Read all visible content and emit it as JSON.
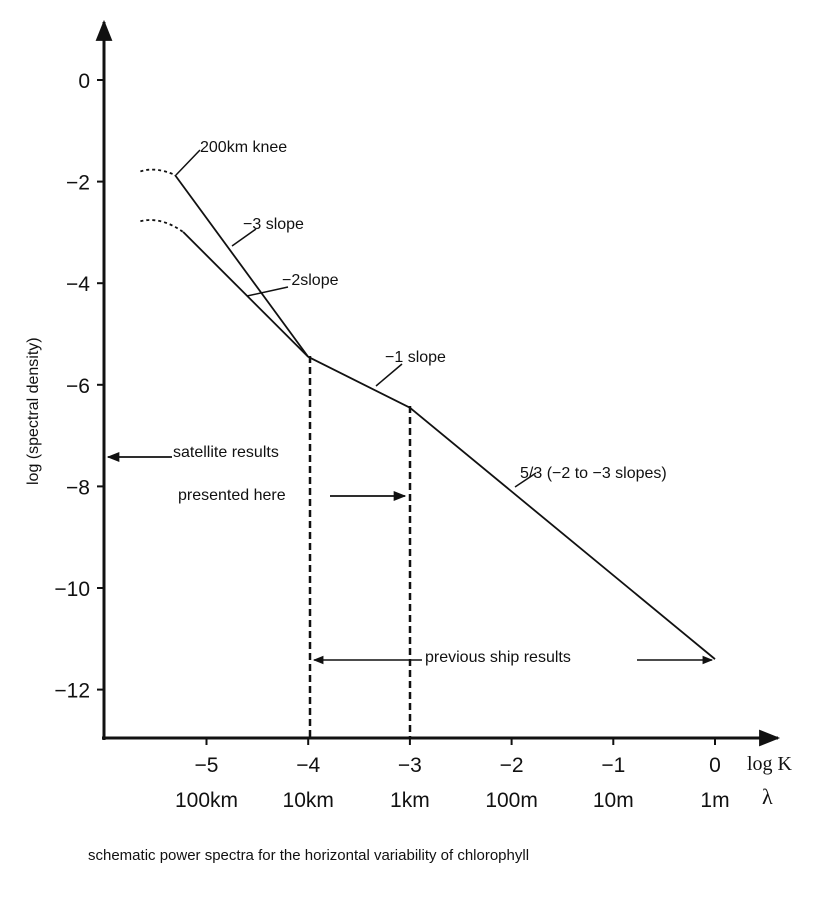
{
  "chart_data": {
    "type": "line",
    "title": "schematic power spectra for the horizontal variability of chlorophyll",
    "xlabel": "log K",
    "xlabel2": "λ",
    "ylabel": "log (spectral density)",
    "xlim": [
      -5.9,
      0.6
    ],
    "ylim": [
      -13,
      1
    ],
    "x_ticks": [
      -5,
      -4,
      -3,
      -2,
      -1,
      0
    ],
    "x_tick_labels": [
      "−5",
      "−4",
      "−3",
      "−2",
      "−1",
      "0"
    ],
    "wavelength_labels": [
      "100km",
      "10km",
      "1km",
      "100m",
      "10m",
      "1m"
    ],
    "y_ticks": [
      0,
      -2,
      -4,
      -6,
      -8,
      -10,
      -12
    ],
    "y_tick_labels": [
      "0",
      "−2",
      "−4",
      "−6",
      "−8",
      "−10",
      "−12"
    ],
    "grid": false,
    "series": [
      {
        "name": "-3 slope",
        "style": "solid",
        "x": [
          -5.31,
          -4.0
        ],
        "y": [
          -1.87,
          -5.45
        ]
      },
      {
        "name": "-2 slope",
        "style": "solid",
        "x": [
          -5.23,
          -4.0
        ],
        "y": [
          -2.99,
          -5.45
        ]
      },
      {
        "name": "-1 slope",
        "style": "solid",
        "x": [
          -4.0,
          -3.0
        ],
        "y": [
          -5.45,
          -6.45
        ]
      },
      {
        "name": "5/3 (-2 to -3 slopes)",
        "style": "solid",
        "x": [
          -3.0,
          0.0
        ],
        "y": [
          -6.45,
          -11.4
        ]
      },
      {
        "name": "upper knee curve",
        "style": "dotted",
        "x": [
          -5.65,
          -5.5,
          -5.31
        ],
        "y": [
          -1.8,
          -1.78,
          -1.87
        ]
      },
      {
        "name": "lower knee curve",
        "style": "dotted",
        "x": [
          -5.65,
          -5.45,
          -5.23
        ],
        "y": [
          -2.78,
          -2.76,
          -2.99
        ]
      }
    ],
    "annotations": {
      "knee": "200km knee",
      "slope3": "−3 slope",
      "slope2": "−2slope",
      "slope1": "−1 slope",
      "slope53": "5/3 (−2 to −3 slopes)",
      "satellite": "satellite results",
      "presented": "presented here",
      "ship": "previous ship results"
    }
  }
}
